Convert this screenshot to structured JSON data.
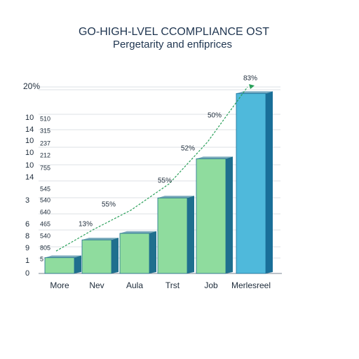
{
  "chart_data": {
    "type": "bar",
    "title": "GO-HIGH-LVEL CCOMPLIANCE OST",
    "subtitle": "Pergetarity and enfiprices",
    "categories": [
      "More",
      "Nev",
      "Aula",
      "Trst",
      "Job",
      "Merlesreel"
    ],
    "values": [
      1.7,
      3.6,
      4.3,
      8.1,
      12.3,
      19.3
    ],
    "colors": [
      "#8fdc9e",
      "#8fdc9e",
      "#8fdc9e",
      "#8fdc9e",
      "#8fdc9e",
      "#4fb9db"
    ],
    "side_colors": [
      "#1f6f8e",
      "#1f6f8e",
      "#1f6f8e",
      "#1f6f8e",
      "#1f6f8e",
      "#1a6f98"
    ],
    "line": {
      "color": "#2aa05a",
      "values": [
        2.4,
        4.7,
        6.8,
        9.6,
        14.1,
        20
      ]
    },
    "annotations": [
      "13%",
      "55%",
      "55%",
      "52%",
      "50%",
      "83%"
    ],
    "ylim": [
      0,
      20
    ],
    "yticks": [
      {
        "value": 20,
        "label": "20%"
      }
    ],
    "y_axis_labels": [
      "10",
      "14",
      "10",
      "10",
      "10",
      "14",
      "3",
      "6",
      "8",
      "9",
      "1",
      "0"
    ],
    "y_axis_labels_2": [
      "510",
      "315",
      "237",
      "212",
      "755",
      "545",
      "540",
      "640",
      "465",
      "540",
      "805",
      "5"
    ],
    "grid": true
  }
}
